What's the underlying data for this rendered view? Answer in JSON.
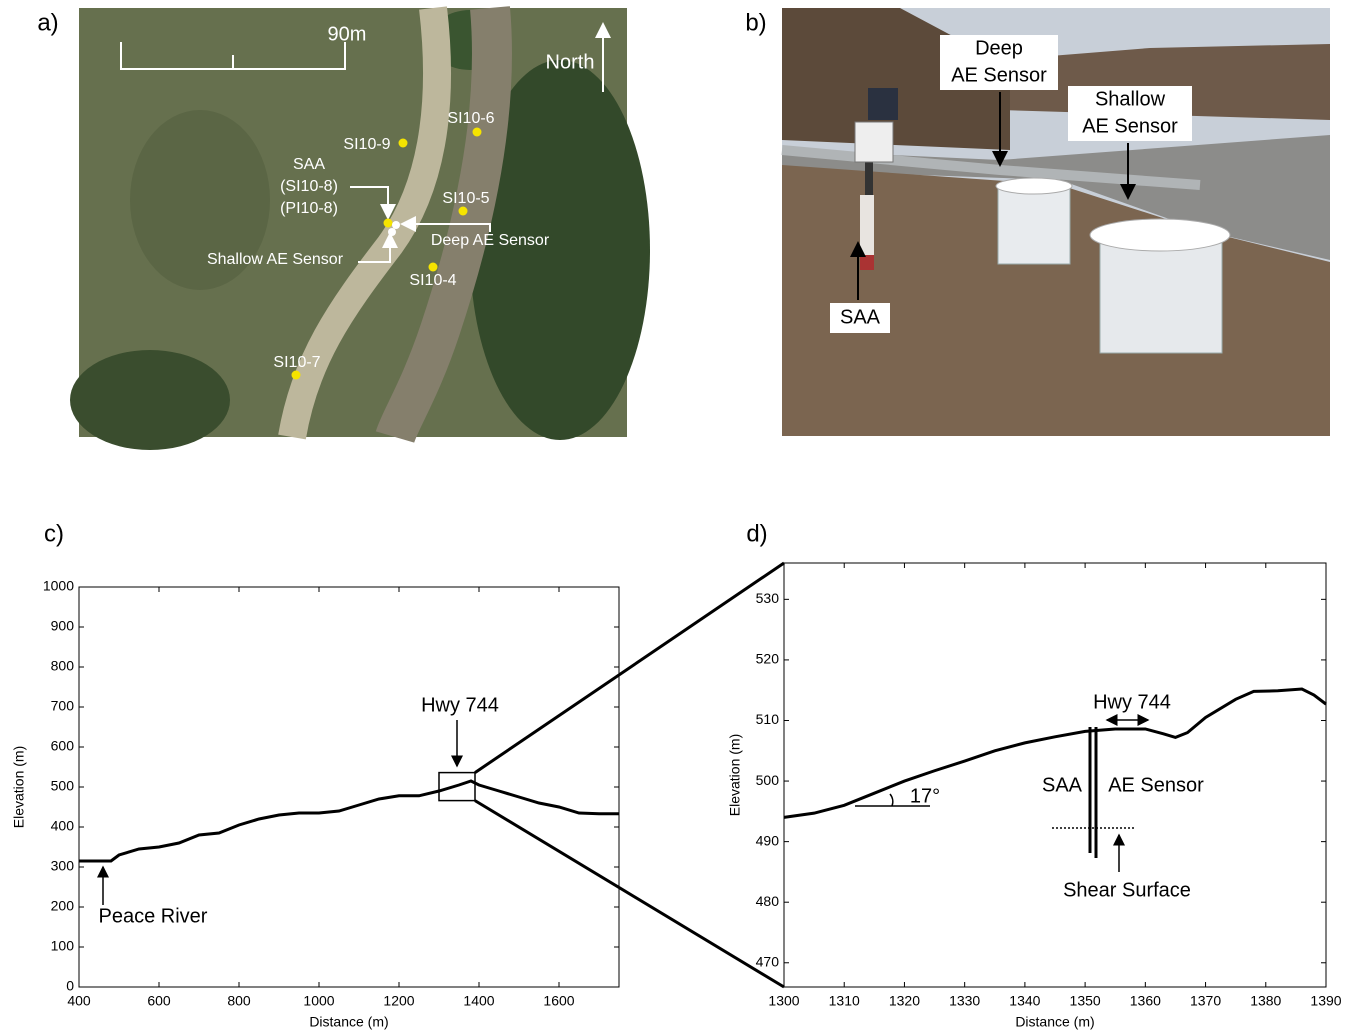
{
  "panel_labels": [
    "a)",
    "b)",
    "c)",
    "d)"
  ],
  "map": {
    "scale": "90m",
    "north": "North",
    "points": [
      "SI10-6",
      "SI10-9",
      "SI10-5",
      "SI10-4",
      "SI10-7"
    ],
    "saa_label": [
      "SAA",
      "(SI10-8)",
      "(PI10-8)"
    ],
    "shallow_label": "Shallow AE Sensor",
    "deep_label": "Deep AE Sensor"
  },
  "photo": {
    "deep_label": [
      "Deep",
      "AE Sensor"
    ],
    "shallow_label": [
      "Shallow",
      "AE Sensor"
    ],
    "saa_label": "SAA"
  },
  "chart_data": [
    {
      "type": "line",
      "xlabel": "Distance (m)",
      "ylabel": "Elevation (m)",
      "x": [
        400,
        480,
        500,
        550,
        600,
        650,
        700,
        750,
        800,
        850,
        900,
        950,
        1000,
        1050,
        1100,
        1150,
        1200,
        1250,
        1300,
        1350,
        1380,
        1400,
        1450,
        1500,
        1550,
        1600,
        1650,
        1700,
        1750
      ],
      "values": [
        315,
        315,
        330,
        345,
        350,
        360,
        380,
        385,
        405,
        420,
        430,
        435,
        435,
        440,
        455,
        470,
        478,
        478,
        490,
        505,
        515,
        505,
        490,
        475,
        460,
        450,
        435,
        433,
        433
      ],
      "color": "#000000",
      "xlim": [
        400,
        1750
      ],
      "ylim": [
        0,
        1000
      ],
      "xticks": [
        400,
        600,
        800,
        1000,
        1200,
        1400,
        1600
      ],
      "yticks": [
        0,
        100,
        200,
        300,
        400,
        500,
        600,
        700,
        800,
        900,
        1000
      ],
      "annotations": [
        "Hwy 744",
        "Peace River"
      ]
    },
    {
      "type": "line",
      "xlabel": "Distance (m)",
      "ylabel": "Elevation (m)",
      "x": [
        1300,
        1305,
        1310,
        1315,
        1320,
        1325,
        1330,
        1335,
        1340,
        1345,
        1350,
        1355,
        1360,
        1363,
        1365,
        1367,
        1370,
        1375,
        1378,
        1382,
        1386,
        1388,
        1390
      ],
      "values": [
        494,
        494.7,
        496,
        498,
        500,
        501.7,
        503.3,
        505,
        506.3,
        507.3,
        508.2,
        508.6,
        508.6,
        507.8,
        507.2,
        508,
        510.5,
        513.5,
        514.8,
        514.9,
        515.2,
        514.2,
        512.7
      ],
      "color": "#000000",
      "xlim": [
        1300,
        1390
      ],
      "ylim": [
        466,
        536
      ],
      "xticks": [
        1300,
        1310,
        1320,
        1330,
        1340,
        1350,
        1360,
        1370,
        1380,
        1390
      ],
      "yticks": [
        470,
        480,
        490,
        500,
        510,
        520,
        530
      ],
      "annotations": [
        "Hwy 744",
        "SAA",
        "AE Sensor",
        "17°",
        "Shear Surface"
      ]
    }
  ]
}
